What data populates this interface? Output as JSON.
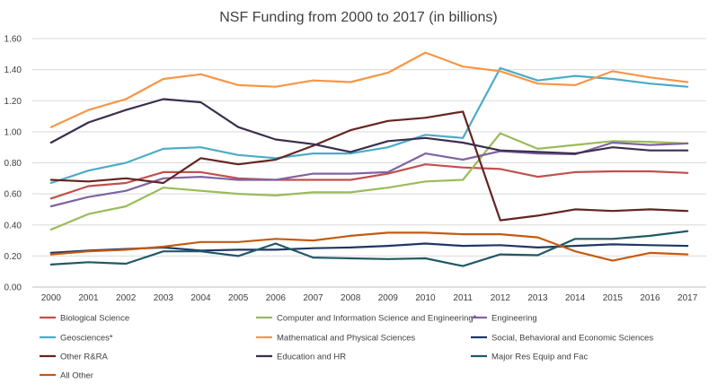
{
  "chart_data": {
    "type": "line",
    "title": "NSF Funding from 2000 to 2017 (in billions)",
    "xlabel": "",
    "ylabel": "",
    "ylim": [
      0,
      1.6
    ],
    "y_ticks": [
      "0.00",
      "0.20",
      "0.40",
      "0.60",
      "0.80",
      "1.00",
      "1.20",
      "1.40",
      "1.60"
    ],
    "grid": true,
    "legend_position": "bottom",
    "categories": [
      "2000",
      "2001",
      "2002",
      "2003",
      "2004",
      "2005",
      "2006",
      "2007",
      "2008",
      "2009",
      "2010",
      "2011",
      "2012",
      "2013",
      "2014",
      "2015",
      "2016",
      "2017"
    ],
    "series": [
      {
        "name": "Biological Science",
        "color": "#c0504d",
        "values": [
          0.57,
          0.65,
          0.67,
          0.74,
          0.74,
          0.7,
          0.69,
          0.69,
          0.69,
          0.73,
          0.79,
          0.77,
          0.76,
          0.71,
          0.74,
          0.745,
          0.745,
          0.735
        ]
      },
      {
        "name": "Computer and Information Science and Engineering*",
        "color": "#9bbb59",
        "values": [
          0.37,
          0.47,
          0.52,
          0.64,
          0.62,
          0.6,
          0.59,
          0.61,
          0.61,
          0.64,
          0.68,
          0.69,
          0.99,
          0.89,
          0.915,
          0.94,
          0.935,
          0.925
        ]
      },
      {
        "name": "Engineering",
        "color": "#8064a2",
        "values": [
          0.52,
          0.58,
          0.62,
          0.7,
          0.71,
          0.69,
          0.69,
          0.73,
          0.73,
          0.74,
          0.86,
          0.82,
          0.875,
          0.86,
          0.855,
          0.93,
          0.915,
          0.925
        ]
      },
      {
        "name": "Geosciences*",
        "color": "#4bacc6",
        "values": [
          0.67,
          0.75,
          0.8,
          0.89,
          0.9,
          0.85,
          0.83,
          0.86,
          0.86,
          0.9,
          0.98,
          0.96,
          1.41,
          1.33,
          1.36,
          1.34,
          1.31,
          1.29
        ]
      },
      {
        "name": "Mathematical and Physical Sciences",
        "color": "#f79646",
        "values": [
          1.03,
          1.14,
          1.21,
          1.34,
          1.37,
          1.3,
          1.29,
          1.33,
          1.32,
          1.38,
          1.51,
          1.42,
          1.39,
          1.31,
          1.3,
          1.39,
          1.35,
          1.32
        ]
      },
      {
        "name": "Social, Behavioral and Economic Sciences",
        "color": "#1f3864",
        "values": [
          0.22,
          0.235,
          0.245,
          0.255,
          0.235,
          0.24,
          0.24,
          0.25,
          0.255,
          0.265,
          0.28,
          0.265,
          0.27,
          0.255,
          0.265,
          0.275,
          0.27,
          0.265
        ]
      },
      {
        "name": "Other R&RA",
        "color": "#632523",
        "values": [
          0.69,
          0.68,
          0.7,
          0.67,
          0.83,
          0.79,
          0.82,
          0.91,
          1.01,
          1.07,
          1.09,
          1.13,
          0.43,
          0.46,
          0.5,
          0.49,
          0.5,
          0.49
        ]
      },
      {
        "name": "Education and HR",
        "color": "#3b2e4e",
        "values": [
          0.93,
          1.06,
          1.14,
          1.21,
          1.19,
          1.03,
          0.95,
          0.92,
          0.87,
          0.94,
          0.96,
          0.93,
          0.88,
          0.87,
          0.86,
          0.9,
          0.88,
          0.88
        ]
      },
      {
        "name": "Major Res Equip and Fac",
        "color": "#215967",
        "values": [
          0.145,
          0.16,
          0.15,
          0.23,
          0.23,
          0.2,
          0.28,
          0.19,
          0.185,
          0.18,
          0.185,
          0.135,
          0.21,
          0.205,
          0.31,
          0.31,
          0.33,
          0.36
        ]
      },
      {
        "name": "All Other",
        "color": "#c55a11",
        "values": [
          0.21,
          0.23,
          0.24,
          0.26,
          0.29,
          0.29,
          0.31,
          0.3,
          0.33,
          0.35,
          0.35,
          0.34,
          0.34,
          0.32,
          0.23,
          0.17,
          0.22,
          0.21
        ]
      }
    ]
  }
}
